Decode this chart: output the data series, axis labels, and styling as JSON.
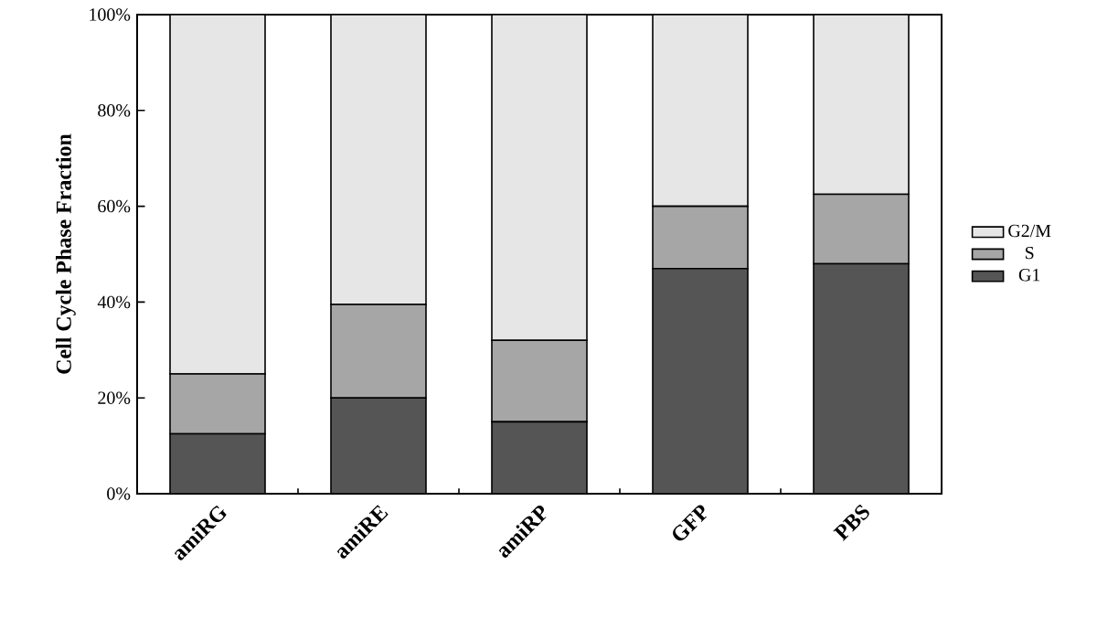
{
  "chart_data": {
    "type": "bar",
    "stacked": true,
    "ylabel": "Cell Cycle Phase Fraction",
    "categories": [
      "amiRG",
      "amiRE",
      "amiRP",
      "GFP",
      "PBS"
    ],
    "series": [
      {
        "name": "G1",
        "color": "#555555",
        "values": [
          12.5,
          20,
          15,
          47,
          48
        ]
      },
      {
        "name": "S",
        "color": "#a6a6a6",
        "values": [
          12.5,
          19.5,
          17,
          13,
          14.5
        ]
      },
      {
        "name": "G2/M",
        "color": "#e6e6e6",
        "values": [
          75,
          60.5,
          68,
          40,
          37.5
        ]
      }
    ],
    "ylim": [
      0,
      100
    ],
    "yticks": [
      {
        "value": 0,
        "label": "0%"
      },
      {
        "value": 20,
        "label": "20%"
      },
      {
        "value": 40,
        "label": "40%"
      },
      {
        "value": 60,
        "label": "60%"
      },
      {
        "value": 80,
        "label": "80%"
      },
      {
        "value": 100,
        "label": "100%"
      }
    ],
    "legend": "right"
  }
}
